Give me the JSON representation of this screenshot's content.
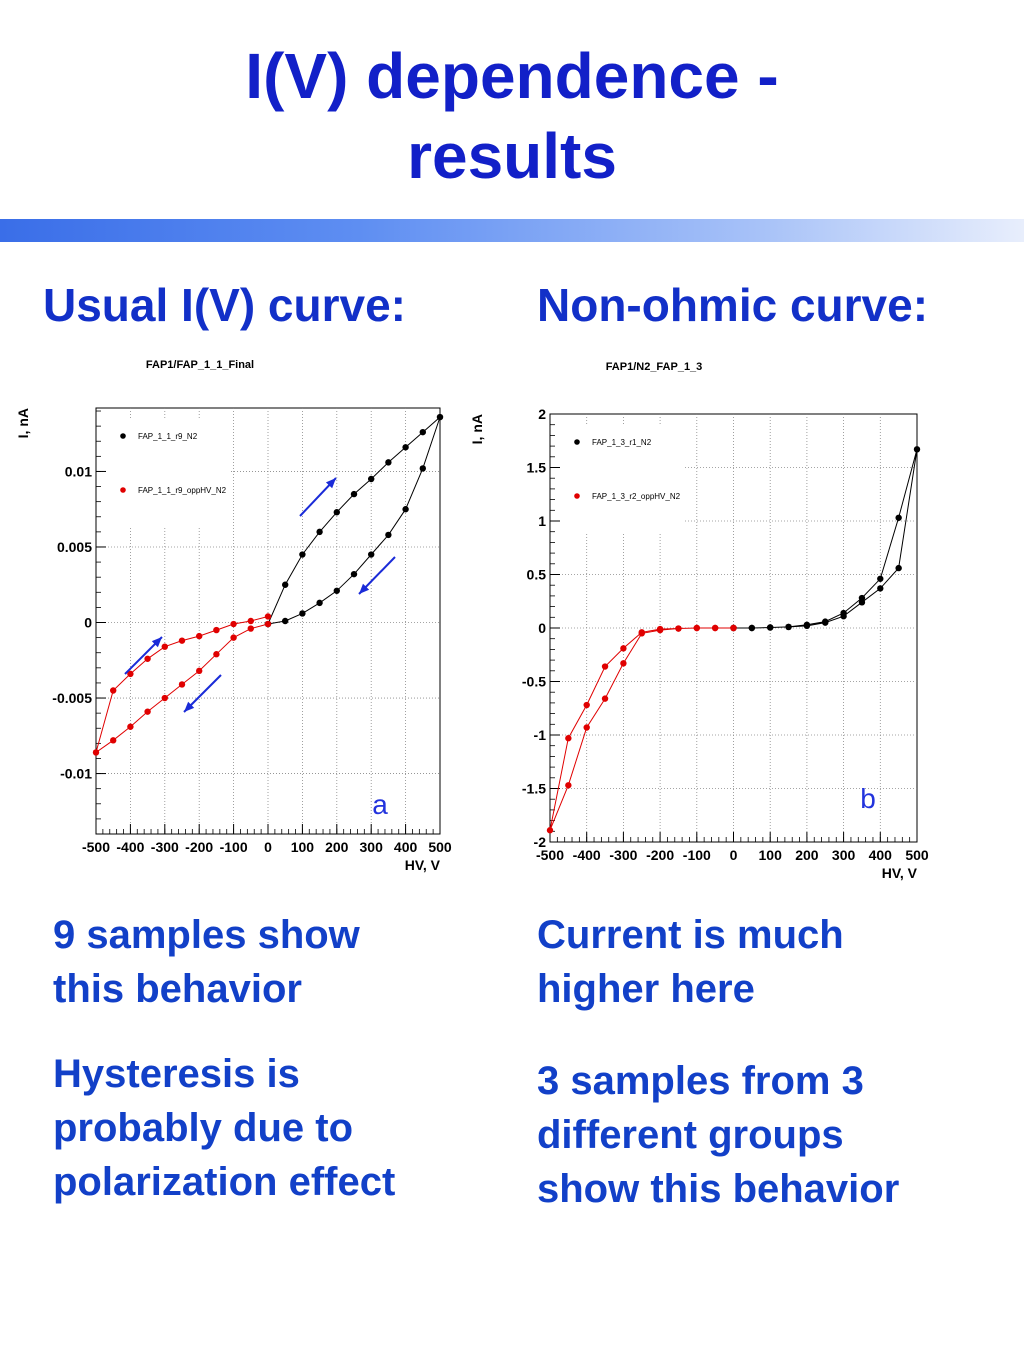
{
  "slide": {
    "title_lines": [
      "I(V) dependence -",
      "results"
    ],
    "left_heading": "Usual I(V) curve:",
    "right_heading": "Non-ohmic curve:",
    "left_paragraphs": [
      [
        "9 samples show",
        "this behavior"
      ],
      [
        "Hysteresis is",
        "probably due to",
        "polarization effect"
      ]
    ],
    "right_paragraphs": [
      [
        "Current is much",
        "higher here"
      ],
      [
        "3 samples from 3",
        "different groups",
        "show this behavior"
      ]
    ]
  },
  "chart_data": [
    {
      "type": "scatter",
      "title": "FAP1/FAP_1_1_Final",
      "xlabel": "HV, V",
      "ylabel": "I, nA",
      "panel_label": "a",
      "xlim": [
        -500,
        500
      ],
      "ylim": [
        -0.014,
        0.0142
      ],
      "x_ticks": [
        -500,
        -400,
        -300,
        -200,
        -100,
        0,
        100,
        200,
        300,
        400,
        500
      ],
      "x_tick_labels": [
        "-500",
        "-400",
        "-300",
        "-200",
        "-100",
        "0",
        "100",
        "200",
        "300",
        "400",
        "500"
      ],
      "y_ticks": [
        -0.01,
        -0.005,
        0,
        0.005,
        0.01
      ],
      "y_tick_labels": [
        "-0.01",
        "-0.005",
        "0",
        "0.005",
        "0.01"
      ],
      "grid": true,
      "legend_position": "top-left",
      "series": [
        {
          "name": "FAP_1_1_r9_N2",
          "color": "#000000",
          "x": [
            0,
            50,
            100,
            150,
            200,
            250,
            300,
            350,
            400,
            450,
            500,
            450,
            400,
            350,
            300,
            250,
            200,
            150,
            100,
            50,
            0
          ],
          "y": [
            -0.0001,
            0.0025,
            0.0045,
            0.006,
            0.0073,
            0.0085,
            0.0095,
            0.0106,
            0.0116,
            0.0126,
            0.0136,
            0.0102,
            0.0075,
            0.0058,
            0.0045,
            0.0032,
            0.0021,
            0.0013,
            0.0006,
            0.0001,
            -0.0001
          ]
        },
        {
          "name": "FAP_1_1_r9_oppHV_N2",
          "color": "#e00000",
          "x": [
            0,
            -50,
            -100,
            -150,
            -200,
            -250,
            -300,
            -350,
            -400,
            -450,
            -500,
            -450,
            -400,
            -350,
            -300,
            -250,
            -200,
            -150,
            -100,
            -50,
            0
          ],
          "y": [
            0.0004,
            0.0001,
            -0.0001,
            -0.0005,
            -0.0009,
            -0.0012,
            -0.0016,
            -0.0024,
            -0.0034,
            -0.0045,
            -0.0086,
            -0.0078,
            -0.0069,
            -0.0059,
            -0.005,
            -0.0041,
            -0.0032,
            -0.0021,
            -0.001,
            -0.0004,
            -0.0001
          ]
        }
      ]
    },
    {
      "type": "scatter",
      "title": "FAP1/N2_FAP_1_3",
      "xlabel": "HV, V",
      "ylabel": "I, nA",
      "panel_label": "b",
      "xlim": [
        -500,
        500
      ],
      "ylim": [
        -2,
        2
      ],
      "x_ticks": [
        -500,
        -400,
        -300,
        -200,
        -100,
        0,
        100,
        200,
        300,
        400,
        500
      ],
      "x_tick_labels": [
        "-500",
        "-400",
        "-300",
        "-200",
        "-100",
        "0",
        "100",
        "200",
        "300",
        "400",
        "500"
      ],
      "y_ticks": [
        -2,
        -1.5,
        -1,
        -0.5,
        0,
        0.5,
        1,
        1.5,
        2
      ],
      "y_tick_labels": [
        "-2",
        "-1.5",
        "-1",
        "-0.5",
        "0",
        "0.5",
        "1",
        "1.5",
        "2"
      ],
      "grid": true,
      "legend_position": "top-left",
      "series": [
        {
          "name": "FAP_1_3_r1_N2",
          "color": "#000000",
          "x": [
            0,
            50,
            100,
            150,
            200,
            250,
            300,
            350,
            400,
            450,
            500,
            450,
            400,
            350,
            300,
            250,
            200,
            150,
            100,
            50,
            0
          ],
          "y": [
            0,
            0,
            0.005,
            0.01,
            0.03,
            0.06,
            0.14,
            0.28,
            0.46,
            1.03,
            1.67,
            0.56,
            0.37,
            0.24,
            0.11,
            0.05,
            0.02,
            0.01,
            0.005,
            0,
            0
          ]
        },
        {
          "name": "FAP_1_3_r2_oppHV_N2",
          "color": "#e00000",
          "x": [
            0,
            -50,
            -100,
            -150,
            -200,
            -250,
            -300,
            -350,
            -400,
            -450,
            -500,
            -450,
            -400,
            -350,
            -300,
            -250,
            -200,
            -150,
            -100,
            -50,
            0
          ],
          "y": [
            0,
            0,
            0,
            -0.005,
            -0.01,
            -0.04,
            -0.19,
            -0.36,
            -0.72,
            -1.03,
            -1.89,
            -1.47,
            -0.93,
            -0.66,
            -0.33,
            -0.05,
            -0.02,
            -0.005,
            0,
            0,
            0
          ]
        }
      ]
    }
  ]
}
